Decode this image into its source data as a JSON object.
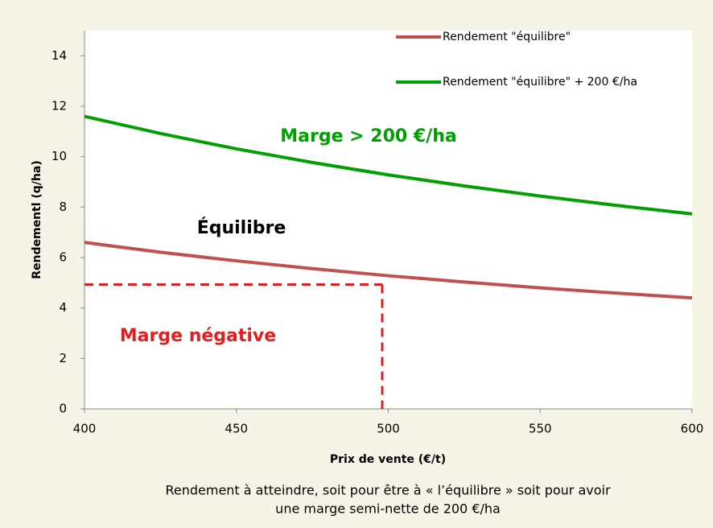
{
  "chart_data": {
    "type": "line",
    "x_label": "Prix de vente (€/t)",
    "y_label": "Rendementl (q/ha)",
    "x": [
      400,
      425,
      450,
      475,
      500,
      525,
      550,
      575,
      600
    ],
    "series": [
      {
        "name": "Rendement \"équilibre\"",
        "color": "#c0504d",
        "values": [
          6.6,
          6.21,
          5.87,
          5.56,
          5.28,
          5.03,
          4.8,
          4.59,
          4.4
        ]
      },
      {
        "name": "Rendement \"équilibre\" +  200 €/ha",
        "color": "#00a000",
        "values": [
          11.6,
          10.92,
          10.31,
          9.77,
          9.28,
          8.84,
          8.44,
          8.07,
          7.73
        ]
      }
    ],
    "reference": {
      "x": 498,
      "y": 4.93,
      "color": "#e02020"
    },
    "annotations": [
      "Marge > 200 €/ha",
      "Équilibre",
      "Marge négative"
    ],
    "caption": [
      "Rendement à atteindre, soit  pour être à « l’équilibre » soit pour avoir",
      "une marge semi-nette de 200 €/ha"
    ],
    "xlim": [
      400,
      600
    ],
    "xticks": [
      400,
      450,
      500,
      550,
      600
    ],
    "ylim": [
      0,
      15
    ],
    "yticks": [
      0,
      2,
      4,
      6,
      8,
      10,
      12,
      14
    ],
    "legend": "top-right"
  }
}
